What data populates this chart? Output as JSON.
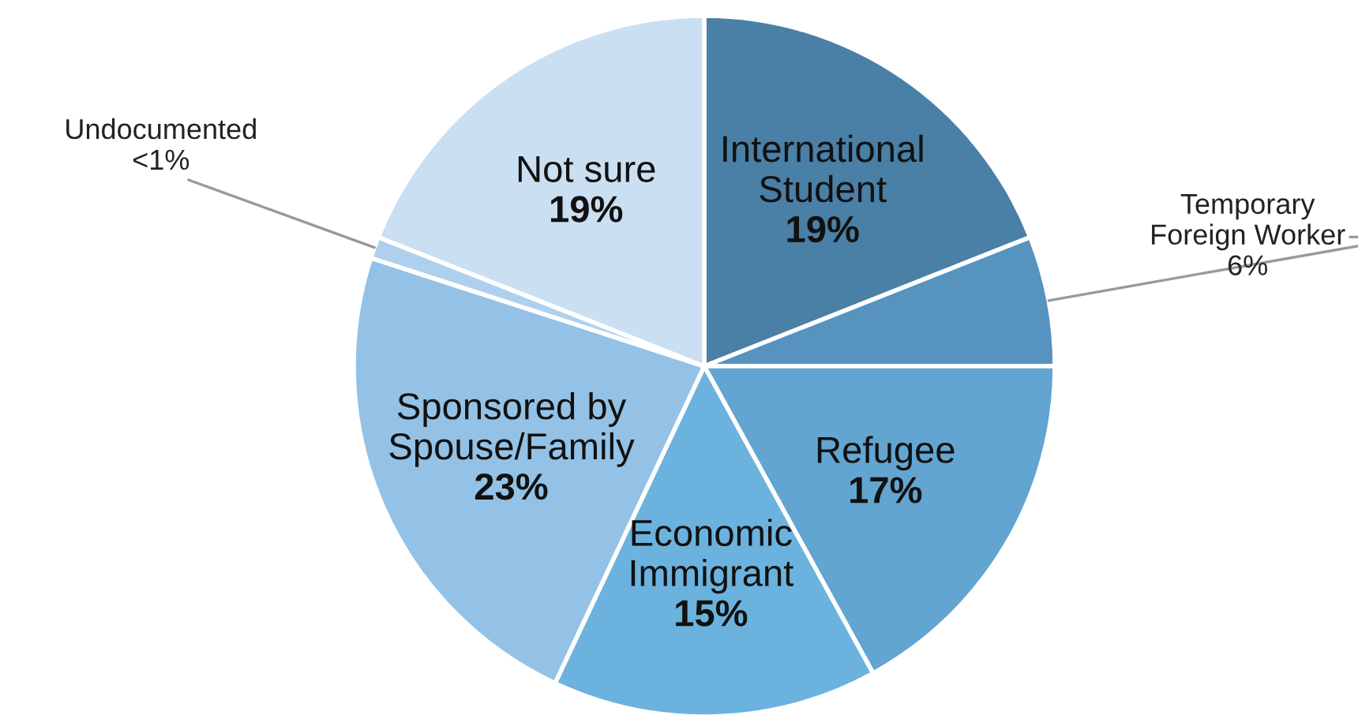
{
  "chart_data": {
    "type": "pie",
    "categories": [
      "International\nStudent",
      "Temporary\nForeign Worker",
      "Refugee",
      "Economic\nImmigrant",
      "Sponsored by\nSpouse/Family",
      "Undocumented",
      "Not sure"
    ],
    "values": [
      19,
      6,
      17,
      15,
      23,
      1,
      19
    ],
    "value_labels": [
      "19%",
      "6%",
      "17%",
      "15%",
      "23%",
      "<1%",
      "19%"
    ],
    "colors": [
      "#4a7fa6",
      "#5693bf",
      "#62a5d0",
      "#6bb3de",
      "#94c2e6",
      "#aed0ee",
      "#cadff2"
    ],
    "legend": false
  }
}
